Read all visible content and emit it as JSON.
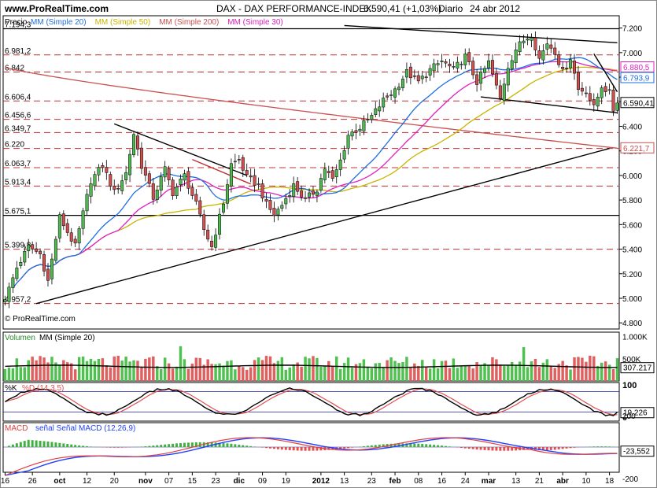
{
  "header": {
    "site": "www.ProRealTime.com",
    "title": "DAX - DAX PERFORMANCE-INDEX",
    "price_change": "6.590,41 (+1,03%)",
    "period": "Diario",
    "date": "24 abr 2012"
  },
  "watermark": "© ProRealTime.com",
  "legends": {
    "price": {
      "label": "Precio",
      "items": [
        {
          "text": "MM (Simple 20)",
          "color": "#1e6fe0"
        },
        {
          "text": "MM (Simple 50)",
          "color": "#c8b400"
        },
        {
          "text": "MM (Simple 200)",
          "color": "#c85050"
        },
        {
          "text": "MM (Simple 30)",
          "color": "#e020c0"
        }
      ]
    },
    "volume": {
      "label": "Volumen",
      "items": [
        {
          "text": "MM (Simple 20)",
          "color": "#000000"
        }
      ]
    },
    "stoch": {
      "items": [
        {
          "text": "%K",
          "color": "#000000"
        },
        {
          "text": "%D (14,3,5)",
          "color": "#e05050"
        }
      ]
    },
    "macd": {
      "items": [
        {
          "text": "MACD",
          "color": "#e04040"
        },
        {
          "text": "señal Señal MACD (12,26,9)",
          "color": "#2040ff"
        }
      ]
    }
  },
  "chart_data": [
    {
      "type": "candlestick",
      "panel": "price",
      "y_ticks": [
        "7.200",
        "7.000",
        "6.800",
        "6.600",
        "6.400",
        "6.200",
        "6.000",
        "5.800",
        "5.600",
        "5.400",
        "5.200",
        "5.000",
        "4.800"
      ],
      "ylim": [
        4750,
        7300
      ],
      "level_labels": [
        {
          "text": "7.194,3",
          "value": 7194.3
        },
        {
          "text": "6.981,2",
          "value": 6981.2
        },
        {
          "text": "6.842",
          "value": 6842
        },
        {
          "text": "6.606,4",
          "value": 6606.4
        },
        {
          "text": "6.456,6",
          "value": 6456.6
        },
        {
          "text": "6.349,7",
          "value": 6349.7
        },
        {
          "text": "6.220",
          "value": 6220
        },
        {
          "text": "6.063,7",
          "value": 6063.7
        },
        {
          "text": "5.913,4",
          "value": 5913.4
        },
        {
          "text": "5.675,1",
          "value": 5675.1
        },
        {
          "text": "5.399,8",
          "value": 5399.8
        },
        {
          "text": "4.957,2",
          "value": 4957.2
        }
      ],
      "right_tags": [
        {
          "text": "6.880,5",
          "value": 6880.5,
          "color": "#e020c0"
        },
        {
          "text": "6.793,9",
          "value": 6793.9,
          "color": "#1e6fe0"
        },
        {
          "text": "6.590,41",
          "value": 6590.41,
          "color": "#000000"
        },
        {
          "text": "6.221,7",
          "value": 6221.7,
          "color": "#c85050"
        }
      ],
      "x_labels": [
        "16",
        "26",
        "oct",
        "12",
        "20",
        "nov",
        "07",
        "15",
        "23",
        "dic",
        "09",
        "19",
        "2012",
        "13",
        "23",
        "feb",
        "08",
        "16",
        "24",
        "mar",
        "13",
        "21",
        "abr",
        "10",
        "18"
      ],
      "x_label_bars": [
        0,
        7,
        14,
        21,
        28,
        36,
        42,
        48,
        54,
        60,
        66,
        72,
        81,
        87,
        94,
        100,
        106,
        112,
        118,
        124,
        131,
        137,
        143,
        149,
        155
      ],
      "bar_count": 158,
      "anchors": [
        [
          0,
          4990
        ],
        [
          3,
          5250
        ],
        [
          6,
          5420
        ],
        [
          9,
          5360
        ],
        [
          11,
          5140
        ],
        [
          14,
          5660
        ],
        [
          16,
          5540
        ],
        [
          18,
          5420
        ],
        [
          22,
          5960
        ],
        [
          25,
          6080
        ],
        [
          28,
          5860
        ],
        [
          31,
          6020
        ],
        [
          33,
          6340
        ],
        [
          35,
          6080
        ],
        [
          38,
          5820
        ],
        [
          41,
          6050
        ],
        [
          43,
          5860
        ],
        [
          46,
          6000
        ],
        [
          49,
          5760
        ],
        [
          51,
          5560
        ],
        [
          53,
          5420
        ],
        [
          56,
          5780
        ],
        [
          58,
          6090
        ],
        [
          60,
          6130
        ],
        [
          62,
          5980
        ],
        [
          65,
          5920
        ],
        [
          67,
          5760
        ],
        [
          69,
          5680
        ],
        [
          71,
          5760
        ],
        [
          74,
          5920
        ],
        [
          77,
          5800
        ],
        [
          80,
          5890
        ],
        [
          82,
          6060
        ],
        [
          84,
          5960
        ],
        [
          86,
          6120
        ],
        [
          88,
          6330
        ],
        [
          91,
          6390
        ],
        [
          94,
          6480
        ],
        [
          97,
          6610
        ],
        [
          100,
          6700
        ],
        [
          103,
          6840
        ],
        [
          106,
          6760
        ],
        [
          109,
          6860
        ],
        [
          112,
          6930
        ],
        [
          115,
          6860
        ],
        [
          118,
          6970
        ],
        [
          121,
          6760
        ],
        [
          124,
          6920
        ],
        [
          127,
          6620
        ],
        [
          129,
          6890
        ],
        [
          131,
          7030
        ],
        [
          133,
          7100
        ],
        [
          135,
          7150
        ],
        [
          137,
          6950
        ],
        [
          139,
          7080
        ],
        [
          141,
          7010
        ],
        [
          143,
          6840
        ],
        [
          145,
          6960
        ],
        [
          147,
          6700
        ],
        [
          149,
          6690
        ],
        [
          151,
          6550
        ],
        [
          153,
          6730
        ],
        [
          155,
          6670
        ],
        [
          156,
          6523
        ],
        [
          157,
          6590
        ]
      ],
      "volume_ylim": [
        0,
        1100000
      ],
      "volume_ticks": [
        "1.000K",
        "500K"
      ],
      "volume_last": "307.217",
      "volume_level": 307217,
      "stoch_ticks": [
        "100",
        "0"
      ],
      "stoch_last": "19,226",
      "stoch_level": 19.226,
      "macd_ticks": [
        "200",
        "-200"
      ],
      "macd_last": "-23,552",
      "macd_level": -23.552
    }
  ]
}
